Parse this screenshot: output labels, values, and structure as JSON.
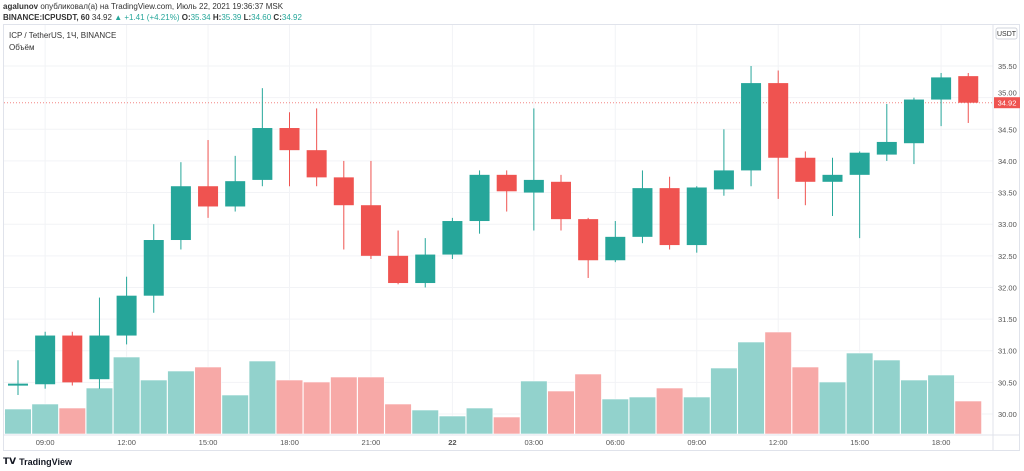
{
  "header": {
    "author": "agalunov",
    "published_text": "опубликовал(а) на TradingView.com, Июль 22, 2021 19:36:37 MSK",
    "symbol": "BINANCE:ICPUSDT, 60",
    "last": "34.92",
    "change": "▲ +1.41 (+4.21%)",
    "o_label": "O:",
    "o": "35.34",
    "h_label": "H:",
    "h": "35.39",
    "l_label": "L:",
    "l": "34.60",
    "c_label": "C:",
    "c": "34.92"
  },
  "legend": {
    "title": "ICP / TetherUS, 1Ч, BINANCE",
    "volume": "Объём"
  },
  "axis": {
    "currency": "USDT",
    "last_price": "34.92"
  },
  "footer": {
    "brand": "TradingView"
  },
  "colors": {
    "up": "#26a69a",
    "down": "#ef5350",
    "vol_up": "#92d2cc",
    "vol_down": "#f7a9a7"
  },
  "chart_data": {
    "type": "candlestick",
    "price_ticks": [
      "30.00",
      "30.50",
      "31.00",
      "31.50",
      "32.00",
      "32.50",
      "33.00",
      "33.50",
      "34.00",
      "34.50",
      "35.00",
      "35.50"
    ],
    "ylim": [
      29.75,
      35.95
    ],
    "time_ticks": [
      {
        "i": 1,
        "label": "09:00"
      },
      {
        "i": 4,
        "label": "12:00"
      },
      {
        "i": 7,
        "label": "15:00"
      },
      {
        "i": 10,
        "label": "18:00"
      },
      {
        "i": 13,
        "label": "21:00"
      },
      {
        "i": 16,
        "label": "22"
      },
      {
        "i": 19,
        "label": "03:00"
      },
      {
        "i": 22,
        "label": "06:00"
      },
      {
        "i": 25,
        "label": "09:00"
      },
      {
        "i": 28,
        "label": "12:00"
      },
      {
        "i": 31,
        "label": "15:00"
      },
      {
        "i": 34,
        "label": "18:00"
      }
    ],
    "candles": [
      [
        30.45,
        30.85,
        30.3,
        30.48,
        25
      ],
      [
        30.47,
        31.3,
        30.4,
        31.24,
        30
      ],
      [
        31.24,
        31.3,
        30.45,
        30.5,
        26
      ],
      [
        30.55,
        31.84,
        30.4,
        31.24,
        46
      ],
      [
        31.24,
        32.17,
        31.1,
        31.87,
        77
      ],
      [
        31.87,
        33.0,
        31.6,
        32.75,
        54
      ],
      [
        32.75,
        33.98,
        32.6,
        33.6,
        63
      ],
      [
        33.6,
        34.33,
        33.1,
        33.28,
        67
      ],
      [
        33.28,
        34.08,
        33.2,
        33.68,
        39
      ],
      [
        33.7,
        35.15,
        33.6,
        34.52,
        73
      ],
      [
        34.52,
        34.77,
        33.6,
        34.17,
        54
      ],
      [
        34.17,
        34.83,
        33.6,
        33.74,
        52
      ],
      [
        33.74,
        34.0,
        32.6,
        33.3,
        57
      ],
      [
        33.3,
        34.0,
        32.45,
        32.5,
        57
      ],
      [
        32.5,
        32.9,
        32.05,
        32.07,
        30
      ],
      [
        32.07,
        32.78,
        32.0,
        32.52,
        24
      ],
      [
        32.52,
        33.1,
        32.45,
        33.05,
        18
      ],
      [
        33.05,
        33.85,
        32.85,
        33.78,
        26
      ],
      [
        33.78,
        33.85,
        33.2,
        33.52,
        17
      ],
      [
        33.5,
        34.83,
        32.9,
        33.7,
        53
      ],
      [
        33.67,
        33.78,
        32.9,
        33.08,
        43
      ],
      [
        33.08,
        33.1,
        32.15,
        32.43,
        60
      ],
      [
        32.43,
        33.05,
        32.4,
        32.8,
        35
      ],
      [
        32.8,
        33.85,
        32.7,
        33.57,
        37
      ],
      [
        33.57,
        33.75,
        32.6,
        32.67,
        46
      ],
      [
        32.67,
        33.6,
        32.55,
        33.58,
        37
      ],
      [
        33.55,
        34.5,
        33.45,
        33.85,
        66
      ],
      [
        33.85,
        35.5,
        33.6,
        35.23,
        92
      ],
      [
        35.23,
        35.43,
        33.4,
        34.05,
        102
      ],
      [
        34.05,
        34.15,
        33.3,
        33.67,
        67
      ],
      [
        33.67,
        34.05,
        33.13,
        33.78,
        52
      ],
      [
        33.78,
        34.15,
        32.78,
        34.13,
        81
      ],
      [
        34.1,
        34.9,
        34.0,
        34.3,
        74
      ],
      [
        34.28,
        35.0,
        33.95,
        34.97,
        54
      ],
      [
        34.97,
        35.39,
        34.55,
        35.32,
        59
      ],
      [
        35.34,
        35.39,
        34.6,
        34.92,
        33
      ]
    ],
    "candle_format": "[open, high, low, close, volume_relative]"
  }
}
